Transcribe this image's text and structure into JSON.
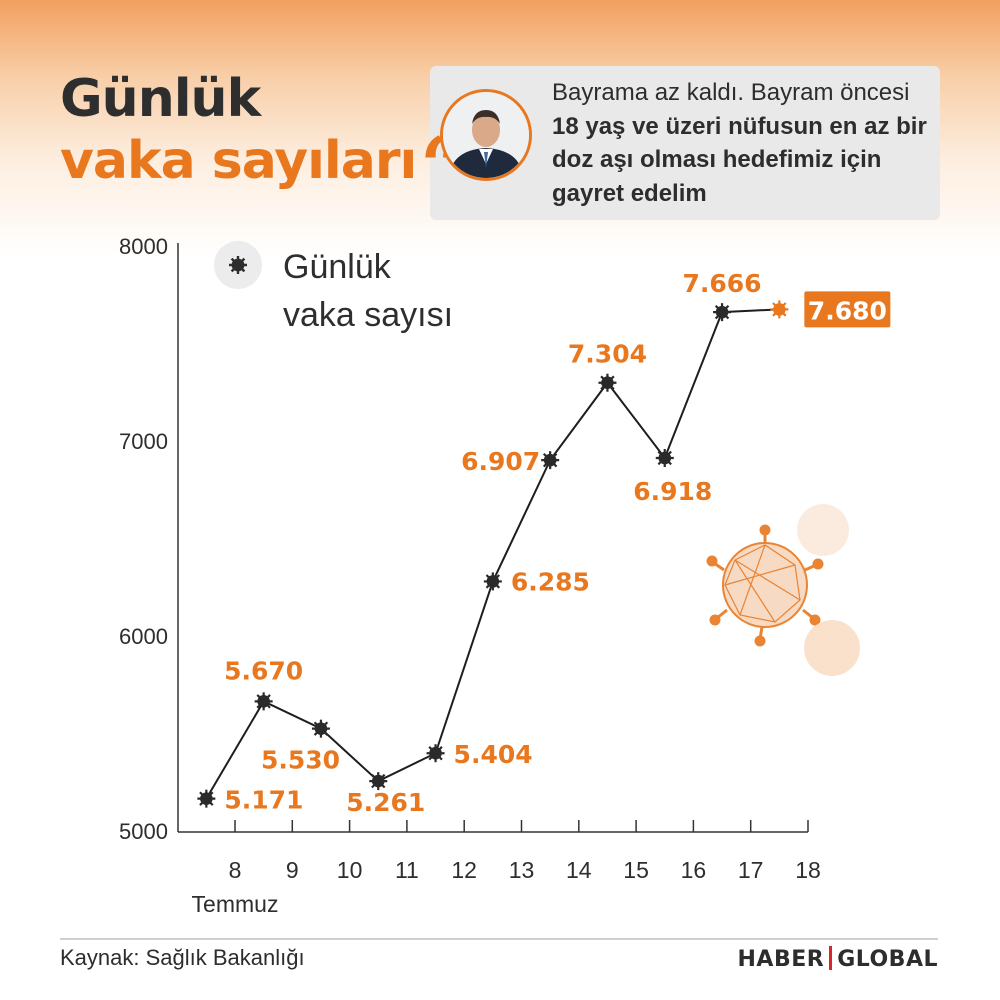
{
  "headline": {
    "line1": "Günlük",
    "line2": "vaka sayıları"
  },
  "quote": {
    "mark": "“",
    "part1": "Bayrama az kaldı. Bayram öncesi ",
    "part2": "18 yaş ve üzeri nüfusun en az bir doz aşı olması hedefimiz için gayret edelim"
  },
  "colors": {
    "accent": "#e8771e",
    "dark": "#2e2e2e",
    "brand_bar": "#d8262c"
  },
  "chart_data": {
    "type": "line",
    "legend": {
      "icon": "virus-icon",
      "line1": "Günlük",
      "line2": "vaka sayısı",
      "placement": "top-left"
    },
    "x": [
      "8",
      "9",
      "10",
      "11",
      "12",
      "13",
      "14",
      "15",
      "16",
      "17",
      "18"
    ],
    "x_sublabel": "Temmuz",
    "points": [
      {
        "day": "8",
        "value": 5171,
        "label": "5.171"
      },
      {
        "day": "9",
        "value": 5670,
        "label": "5.670"
      },
      {
        "day": "10",
        "value": 5530,
        "label": "5.530"
      },
      {
        "day": "11",
        "value": 5261,
        "label": "5.261"
      },
      {
        "day": "12",
        "value": 5404,
        "label": "5.404"
      },
      {
        "day": "13",
        "value": 6285,
        "label": "6.285"
      },
      {
        "day": "14",
        "value": 6907,
        "label": "6.907"
      },
      {
        "day": "15",
        "value": 7304,
        "label": "7.304"
      },
      {
        "day": "16",
        "value": 6918,
        "label": "6.918"
      },
      {
        "day": "17",
        "value": 7666,
        "label": "7.666"
      },
      {
        "day": "18",
        "value": 7680,
        "label": "7.680",
        "highlight": true
      }
    ],
    "yticks": [
      "5000",
      "6000",
      "7000",
      "8000"
    ],
    "ylim": [
      5000,
      8000
    ],
    "grid": false
  },
  "footer": {
    "source": "Kaynak: Sağlık Bakanlığı",
    "brand_left": "HABER",
    "brand_right": "GLOBAL"
  }
}
